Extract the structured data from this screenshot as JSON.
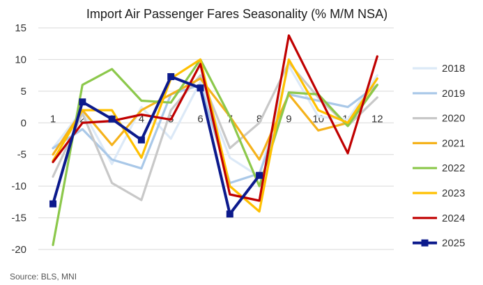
{
  "chart_data": {
    "type": "line",
    "title": "Import Air Passenger Fares Seasonality (% M/M NSA)",
    "source": "Source: BLS, MNI",
    "xlabel": "",
    "ylabel": "",
    "categories": [
      "1",
      "2",
      "3",
      "4",
      "5",
      "6",
      "7",
      "8",
      "9",
      "10",
      "11",
      "12"
    ],
    "ylim": [
      -20,
      15
    ],
    "yticks": [
      15,
      10,
      5,
      0,
      -5,
      -10,
      -15,
      -20
    ],
    "grid": true,
    "legend": "right",
    "series": [
      {
        "name": "2018",
        "color": "#dce9f7",
        "marker": "none",
        "values": [
          -4.0,
          2.0,
          -6.5,
          2.5,
          -2.5,
          6.5,
          -5.5,
          -8.5,
          9.0,
          1.0,
          0.5,
          7.5
        ]
      },
      {
        "name": "2019",
        "color": "#a9c8e8",
        "marker": "none",
        "values": [
          -4.0,
          -1.0,
          -5.8,
          -7.2,
          4.5,
          6.0,
          -9.5,
          -8.0,
          4.5,
          3.5,
          2.5,
          6.0
        ]
      },
      {
        "name": "2020",
        "color": "#c8c8c8",
        "marker": "none",
        "values": [
          -8.5,
          1.5,
          -9.5,
          -12.2,
          2.0,
          7.5,
          -4.0,
          0.0,
          9.5,
          4.0,
          -0.5,
          4.0
        ]
      },
      {
        "name": "2021",
        "color": "#f5b21b",
        "marker": "none",
        "values": [
          -5.0,
          2.0,
          -3.5,
          2.0,
          4.5,
          7.0,
          1.0,
          -5.8,
          4.5,
          -1.2,
          0.0,
          6.0
        ]
      },
      {
        "name": "2022",
        "color": "#8cc84b",
        "marker": "none",
        "values": [
          -19.3,
          6.0,
          8.5,
          3.5,
          3.2,
          10.0,
          1.0,
          -10.0,
          4.8,
          4.5,
          -0.5,
          6.0
        ]
      },
      {
        "name": "2023",
        "color": "#ffc000",
        "marker": "none",
        "values": [
          -6.0,
          2.0,
          2.0,
          -5.5,
          7.0,
          10.0,
          -10.0,
          -14.0,
          10.0,
          2.0,
          0.0,
          7.0
        ]
      },
      {
        "name": "2024",
        "color": "#c00000",
        "marker": "none",
        "values": [
          -6.2,
          0.0,
          0.3,
          1.3,
          0.5,
          9.3,
          -11.3,
          -12.3,
          13.8,
          4.5,
          -4.8,
          10.5
        ]
      },
      {
        "name": "2025",
        "color": "#0c1a8c",
        "marker": "square",
        "values": [
          -12.8,
          3.3,
          0.6,
          -2.7,
          7.3,
          5.5,
          -14.4,
          -8.3,
          null,
          null,
          null,
          null
        ]
      }
    ]
  }
}
